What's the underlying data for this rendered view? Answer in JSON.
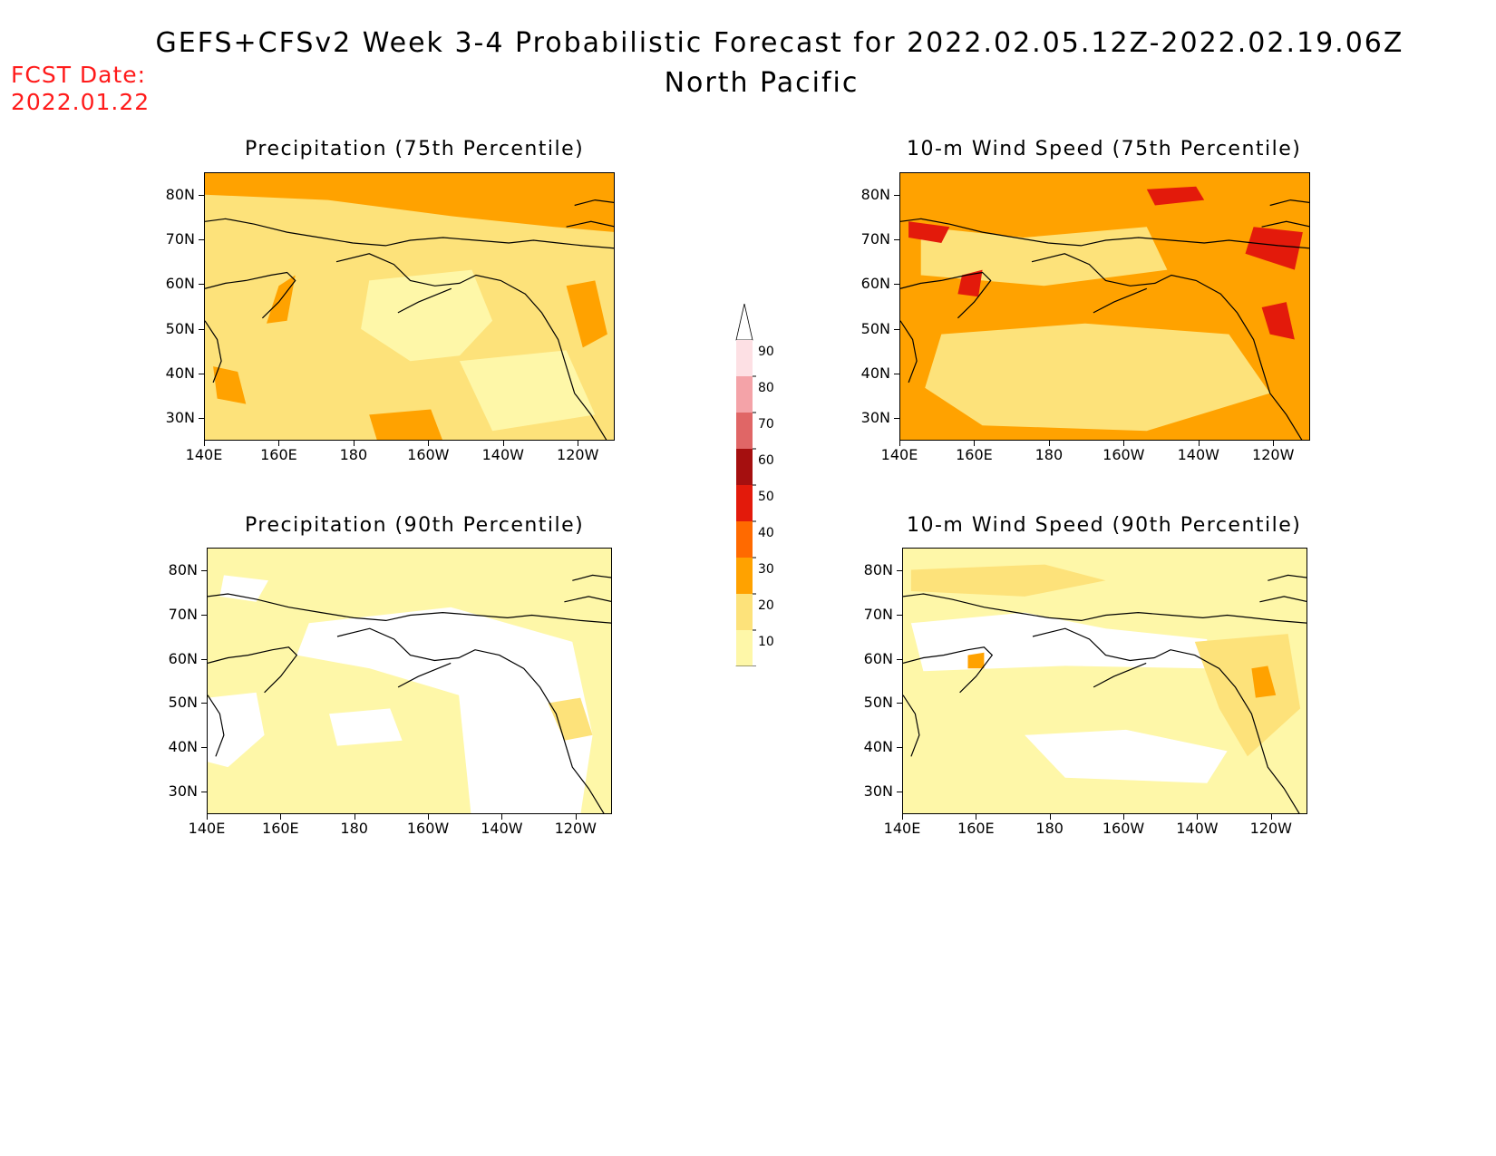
{
  "header": {
    "title": "GEFS+CFSv2 Week 3-4 Probabilistic Forecast for 2022.02.05.12Z-2022.02.19.06Z",
    "subtitle": "North Pacific",
    "fcst_label": "FCST Date:",
    "fcst_date": "2022.01.22"
  },
  "axes": {
    "lat_ticks": [
      "80N",
      "70N",
      "60N",
      "50N",
      "40N",
      "30N"
    ],
    "lon_ticks": [
      "140E",
      "160E",
      "180",
      "160W",
      "140W",
      "120W"
    ]
  },
  "colorbar": {
    "levels": [
      "90",
      "80",
      "70",
      "60",
      "50",
      "40",
      "30",
      "20",
      "10"
    ],
    "colors": [
      "#fde0e4",
      "#f4a3a8",
      "#e06666",
      "#a50f0f",
      "#e31a0b",
      "#ff6a00",
      "#ffa200",
      "#fde27a",
      "#fef7a8"
    ]
  },
  "panels": [
    {
      "id": "precip75",
      "title": "Precipitation (75th Percentile)",
      "base_color": "#fde27a"
    },
    {
      "id": "wind75",
      "title": "10-m Wind Speed (75th Percentile)",
      "base_color": "#ffa200"
    },
    {
      "id": "precip90",
      "title": "Precipitation (90th Percentile)",
      "base_color": "#fef7a8"
    },
    {
      "id": "wind90",
      "title": "10-m Wind Speed (90th Percentile)",
      "base_color": "#fef7a8"
    }
  ]
}
